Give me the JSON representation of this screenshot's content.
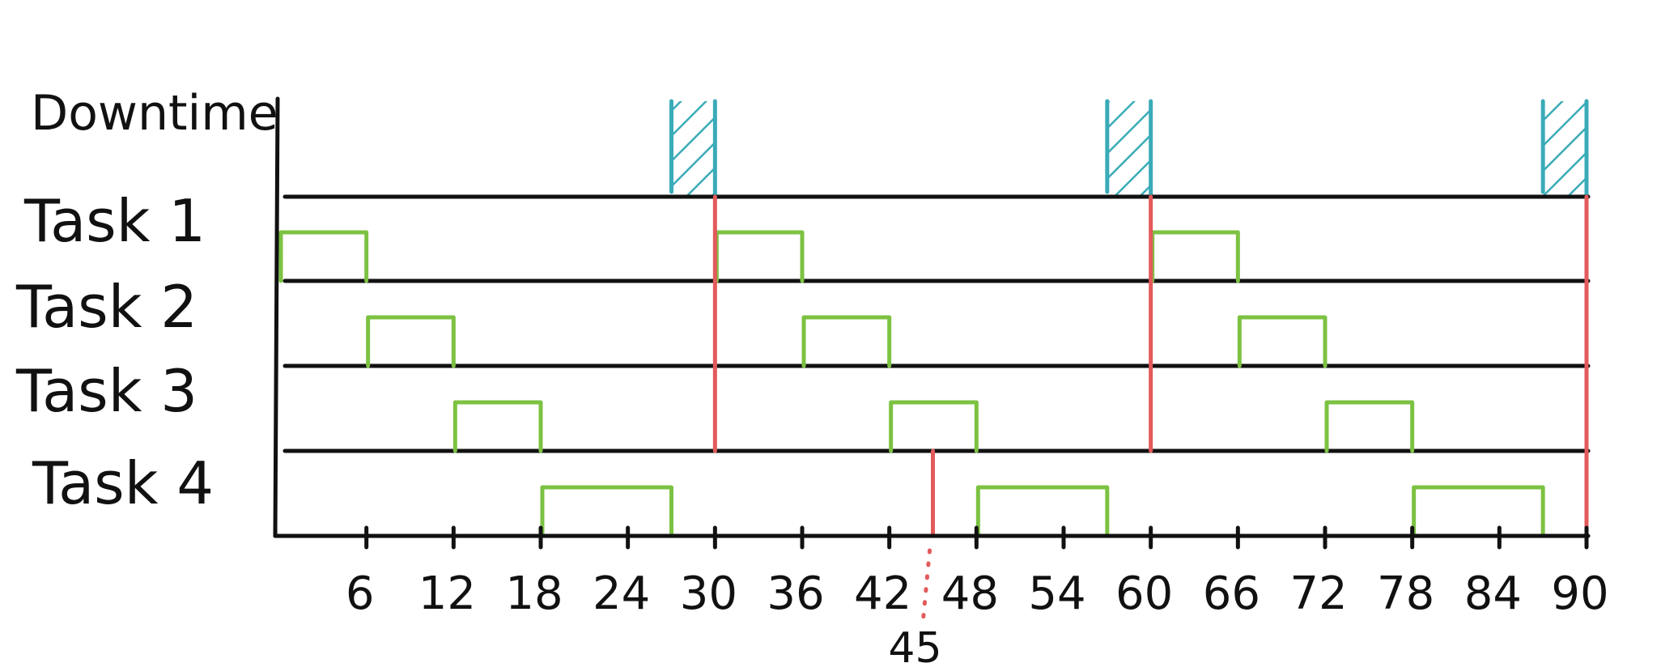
{
  "chart_data": {
    "type": "gantt",
    "x_range": [
      0,
      90
    ],
    "downtime_label": "Downtime",
    "rows": [
      "Task 1",
      "Task 2",
      "Task 3",
      "Task 4"
    ],
    "ticks": [
      6,
      12,
      18,
      24,
      30,
      36,
      42,
      48,
      54,
      60,
      66,
      72,
      78,
      84,
      90
    ],
    "tick_labels": [
      "6",
      "12",
      "18",
      "24",
      "30",
      "36",
      "42",
      "48",
      "54",
      "60",
      "66",
      "72",
      "78",
      "84",
      "90"
    ],
    "tasks": [
      {
        "row": 0,
        "start": 0,
        "end": 6
      },
      {
        "row": 0,
        "start": 30,
        "end": 36
      },
      {
        "row": 0,
        "start": 60,
        "end": 66
      },
      {
        "row": 1,
        "start": 6,
        "end": 12
      },
      {
        "row": 1,
        "start": 36,
        "end": 42
      },
      {
        "row": 1,
        "start": 66,
        "end": 72
      },
      {
        "row": 2,
        "start": 12,
        "end": 18
      },
      {
        "row": 2,
        "start": 42,
        "end": 48
      },
      {
        "row": 2,
        "start": 72,
        "end": 78
      },
      {
        "row": 3,
        "start": 18,
        "end": 27
      },
      {
        "row": 3,
        "start": 48,
        "end": 57
      },
      {
        "row": 3,
        "start": 78,
        "end": 87
      }
    ],
    "downtimes": [
      {
        "start": 27,
        "end": 30
      },
      {
        "start": 57,
        "end": 60
      },
      {
        "start": 87,
        "end": 90
      }
    ],
    "deadlines": [
      30,
      60,
      90
    ],
    "marker": {
      "value": 45,
      "label": "45"
    },
    "colors": {
      "axis": "#111111",
      "task": "#7cc242",
      "downtime": "#3aabb8",
      "deadline": "#e35a5a",
      "marker": "#e35a5a"
    }
  }
}
